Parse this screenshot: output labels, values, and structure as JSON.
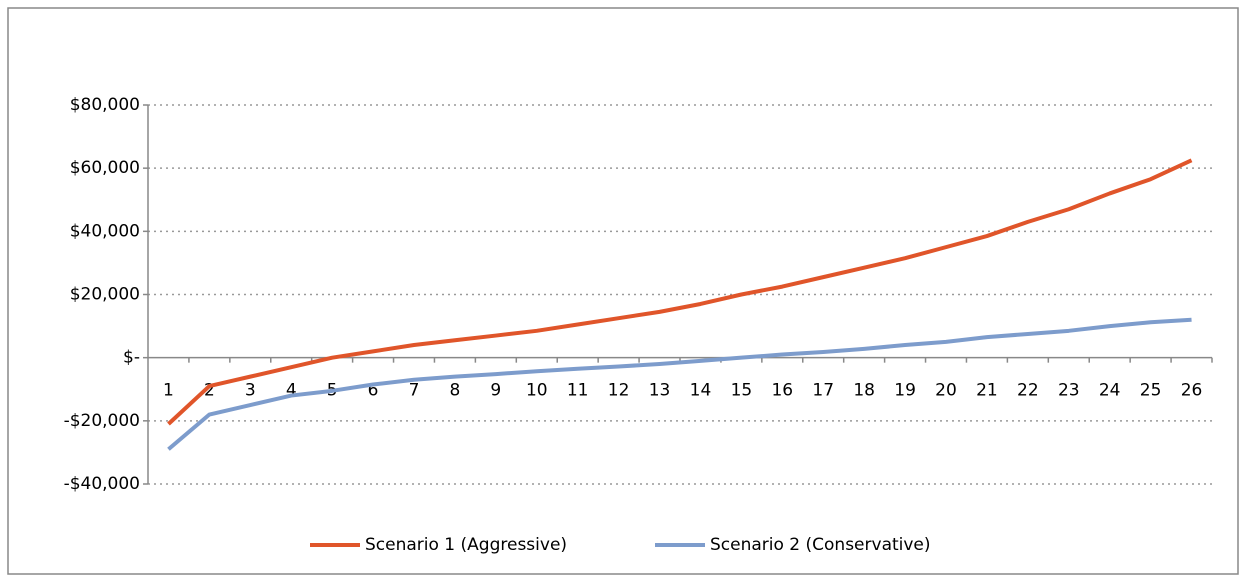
{
  "chart_data": {
    "type": "line",
    "categories": [
      "1",
      "2",
      "3",
      "4",
      "5",
      "6",
      "7",
      "8",
      "9",
      "10",
      "11",
      "12",
      "13",
      "14",
      "15",
      "16",
      "17",
      "18",
      "19",
      "20",
      "21",
      "22",
      "23",
      "24",
      "25",
      "26"
    ],
    "series": [
      {
        "name": "Scenario 1 (Aggressive)",
        "color": "#e0552a",
        "values": [
          -21000,
          -9000,
          -6000,
          -3000,
          0,
          2000,
          4000,
          5500,
          7000,
          8500,
          10500,
          12500,
          14500,
          17000,
          20000,
          22500,
          25500,
          28500,
          31500,
          35000,
          38500,
          43000,
          47000,
          52000,
          56500,
          62500
        ]
      },
      {
        "name": "Scenario 2 (Conservative)",
        "color": "#7d9ccc",
        "values": [
          -29000,
          -18000,
          -15000,
          -12000,
          -10500,
          -8500,
          -7000,
          -6000,
          -5200,
          -4300,
          -3500,
          -2800,
          -2000,
          -1000,
          0,
          1000,
          1800,
          2800,
          4000,
          5000,
          6500,
          7500,
          8500,
          10000,
          11200,
          12000
        ]
      }
    ],
    "ylim": [
      -40000,
      80000
    ],
    "yticks": [
      {
        "value": -40000,
        "label": "-$40,000"
      },
      {
        "value": -20000,
        "label": "-$20,000"
      },
      {
        "value": 0,
        "label": "$-"
      },
      {
        "value": 20000,
        "label": "$20,000"
      },
      {
        "value": 40000,
        "label": "$40,000"
      },
      {
        "value": 60000,
        "label": "$60,000"
      },
      {
        "value": 80000,
        "label": "$80,000"
      }
    ],
    "grid": true
  }
}
